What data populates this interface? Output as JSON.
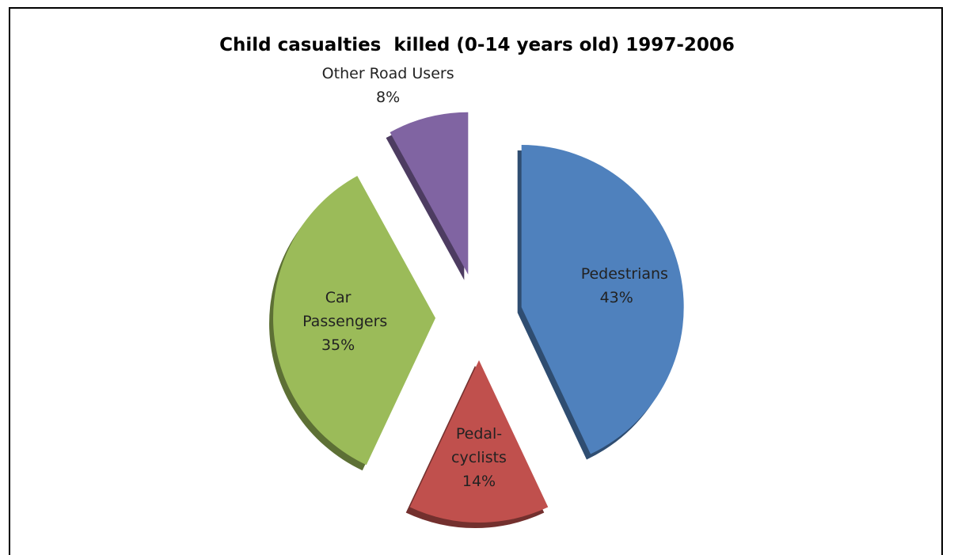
{
  "chart_data": {
    "type": "pie",
    "title": "Child casualties  killed (0-14 years old) 1997-2006",
    "categories": [
      "Pedestrians",
      "Pedal-cyclists",
      "Car Passengers",
      "Other Road Users"
    ],
    "values": [
      43,
      14,
      35,
      8
    ],
    "value_labels": [
      "43%",
      "14%",
      "35%",
      "8%"
    ],
    "colors": [
      "#4f81bd",
      "#c0504d",
      "#9bbb59",
      "#8064a2"
    ]
  }
}
